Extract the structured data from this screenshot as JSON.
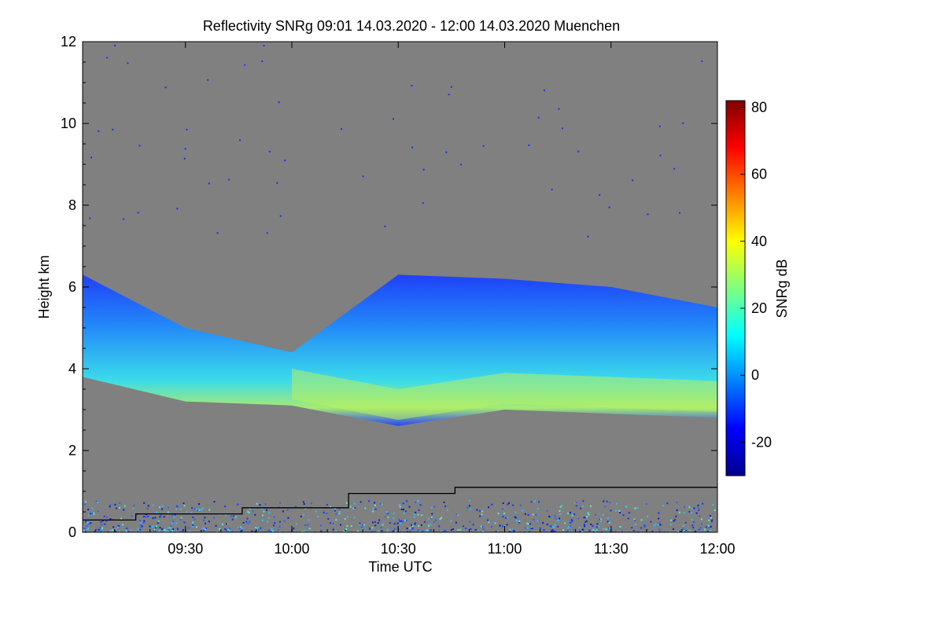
{
  "chart_data": {
    "type": "heatmap",
    "title": "Reflectivity SNRg   09:01 14.03.2020 - 12:00 14.03.2020 Muenchen",
    "xlabel": "Time UTC",
    "ylabel": "Height km",
    "xlim": [
      "09:01",
      "12:00"
    ],
    "ylim": [
      0,
      12
    ],
    "x_ticks": [
      "09:30",
      "10:00",
      "10:30",
      "11:00",
      "11:30",
      "12:00"
    ],
    "y_ticks": [
      "0",
      "2",
      "4",
      "6",
      "8",
      "10",
      "12"
    ],
    "colorbar": {
      "label": "SNRg dB",
      "range": [
        -30,
        82
      ],
      "ticks": [
        "-20",
        "0",
        "20",
        "40",
        "60",
        "80"
      ],
      "colormap": "jet"
    },
    "background_color": "#808080",
    "cloud_layer": {
      "description_points_time_height": [
        [
          "09:01",
          3.8,
          6.3
        ],
        [
          "09:30",
          3.2,
          5.0
        ],
        [
          "10:00",
          3.1,
          4.4
        ],
        [
          "10:30",
          2.6,
          6.3
        ],
        [
          "11:00",
          3.0,
          6.2
        ],
        [
          "11:30",
          2.9,
          6.0
        ],
        [
          "12:00",
          2.8,
          5.5
        ]
      ],
      "peak_snr_db": 35
    },
    "boundary_line_steps": [
      {
        "start": "09:01",
        "end": "09:16",
        "height": 0.3
      },
      {
        "start": "09:16",
        "end": "09:46",
        "height": 0.45
      },
      {
        "start": "09:46",
        "end": "10:16",
        "height": 0.6
      },
      {
        "start": "10:16",
        "end": "10:46",
        "height": 0.95
      },
      {
        "start": "10:46",
        "end": "12:00",
        "height": 1.1
      }
    ]
  }
}
